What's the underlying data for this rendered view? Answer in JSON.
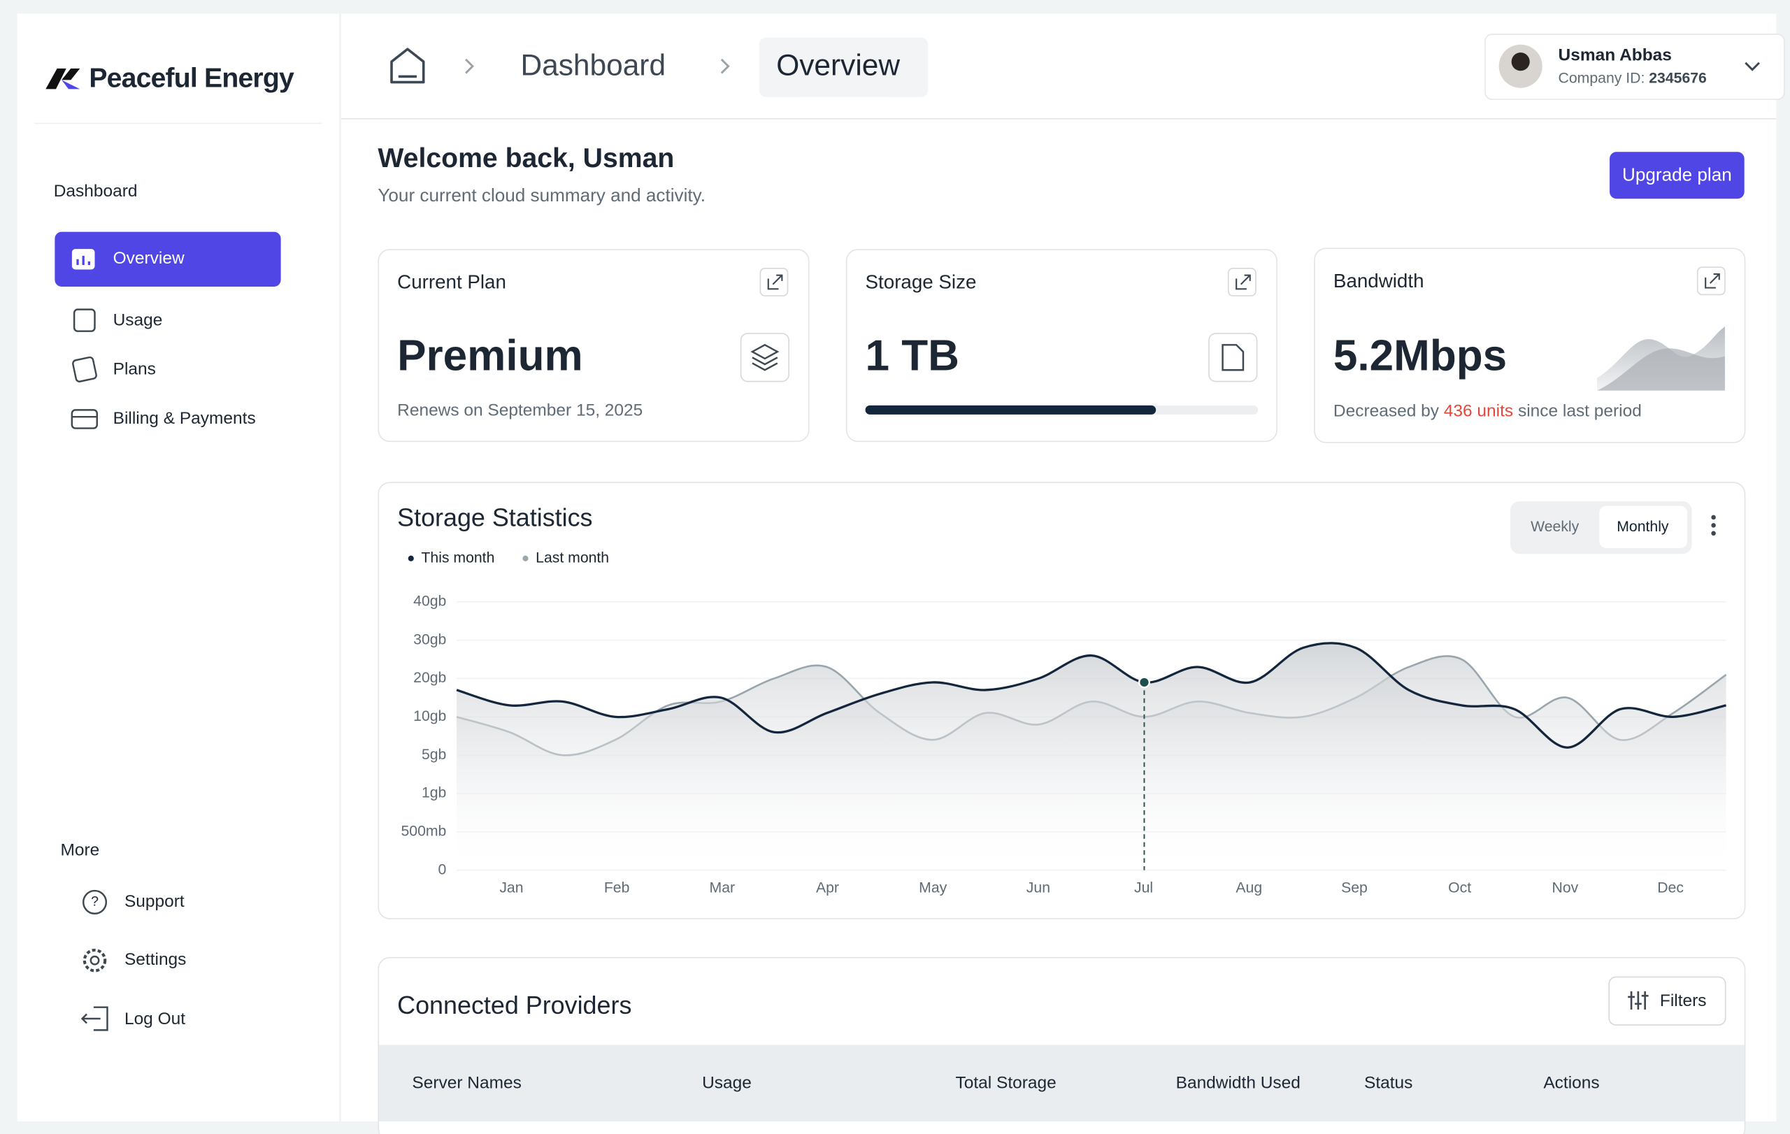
{
  "brand": "Peaceful Energy",
  "breadcrumb": [
    "Dashboard",
    "Overview"
  ],
  "user": {
    "name": "Usman Abbas",
    "company_label": "Company ID:",
    "company_id": "2345676"
  },
  "sidebar": {
    "section": "Dashboard",
    "items": [
      "Overview",
      "Usage",
      "Plans",
      "Billing & Payments"
    ],
    "more_section": "More",
    "more_items": [
      "Support",
      "Settings",
      "Log Out"
    ]
  },
  "welcome": {
    "title": "Welcome back, Usman",
    "subtitle": "Your current cloud summary and activity.",
    "button": "Upgrade plan"
  },
  "cards": [
    {
      "title": "Current Plan",
      "value": "Premium",
      "note": "Renews on September 15, 2025"
    },
    {
      "title": "Storage Size",
      "value": "1 TB",
      "progress": 74
    },
    {
      "title": "Bandwidth",
      "value": "5.2Mbps",
      "note_before": "Decreased by",
      "note_highlight": "436 units",
      "note_after": "since last period"
    }
  ],
  "chart_data": {
    "type": "area",
    "title": "Storage Statistics",
    "toggle": [
      "Weekly",
      "Monthly"
    ],
    "x_axis_labels": [
      "Jan",
      "Feb",
      "Mar",
      "Apr",
      "May",
      "Jun",
      "Jul",
      "Aug",
      "Sep",
      "Oct",
      "Nov",
      "Dec"
    ],
    "ylim": [
      0,
      40
    ],
    "yticks": [
      {
        "value": 40,
        "label": "40gb"
      },
      {
        "value": 30,
        "label": "30gb"
      },
      {
        "value": 20,
        "label": "20gb"
      },
      {
        "value": 10,
        "label": "10gb"
      },
      {
        "value": 5,
        "label": "5gb"
      },
      {
        "value": 1,
        "label": "1gb"
      },
      {
        "value": 0.5,
        "label": "500mb"
      },
      0
    ],
    "series": [
      {
        "name": "This month",
        "color": "#13263b",
        "values": [
          17,
          13,
          14,
          10,
          12,
          15,
          8,
          11,
          16,
          19,
          17,
          20,
          26,
          19,
          23,
          19,
          28,
          28,
          17,
          13,
          12,
          6,
          12,
          10,
          13
        ]
      },
      {
        "name": "Last month",
        "color": "#9aa6ad",
        "values": [
          10,
          8,
          5,
          7,
          13,
          14,
          20,
          23,
          11,
          7,
          11,
          9,
          14,
          10,
          14,
          11,
          10,
          15,
          23,
          25,
          10,
          15,
          7,
          11,
          21
        ]
      }
    ]
  },
  "table": {
    "title": "Connected Providers",
    "filter_button": "Filters",
    "columns": [
      "Server Names",
      "Usage",
      "Total Storage",
      "Bandwidth Used",
      "Status",
      "Actions"
    ]
  }
}
